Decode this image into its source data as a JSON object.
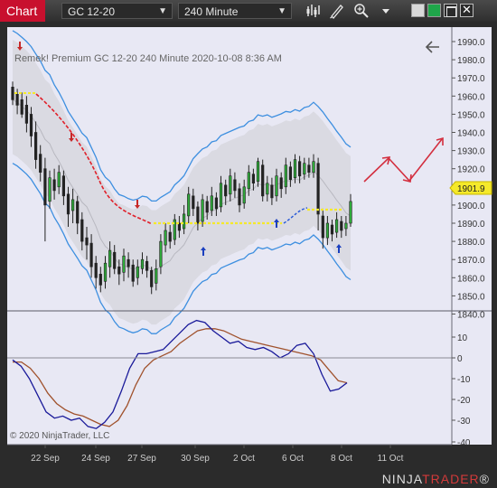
{
  "toolbar": {
    "tab_label": "Chart",
    "instrument": "GC 12-20",
    "interval": "240 Minute"
  },
  "chart": {
    "header_text": "Remek! Premium  GC 12-20  240 Minute  2020-10-08 8:36 AM",
    "copyright": "© 2020 NinjaTrader, LLC",
    "price_badge": "1901.9",
    "price_axis": [
      "1990.0",
      "1980.0",
      "1970.0",
      "1960.0",
      "1950.0",
      "1940.0",
      "1930.0",
      "1920.0",
      "1910.0",
      "1900.0",
      "1890.0",
      "1880.0",
      "1870.0",
      "1860.0",
      "1850.0",
      "1840.0"
    ],
    "osc_axis": [
      "10",
      "0",
      "-10",
      "-20",
      "-30",
      "-40"
    ],
    "date_labels": [
      "22 Sep",
      "24 Sep",
      "27 Sep",
      "30 Sep",
      "2 Oct",
      "6 Oct",
      "8 Oct",
      "11 Oct"
    ]
  },
  "footer": {
    "logo_a": "NINJA",
    "logo_b": "TRADER",
    "logo_r": "®"
  }
}
